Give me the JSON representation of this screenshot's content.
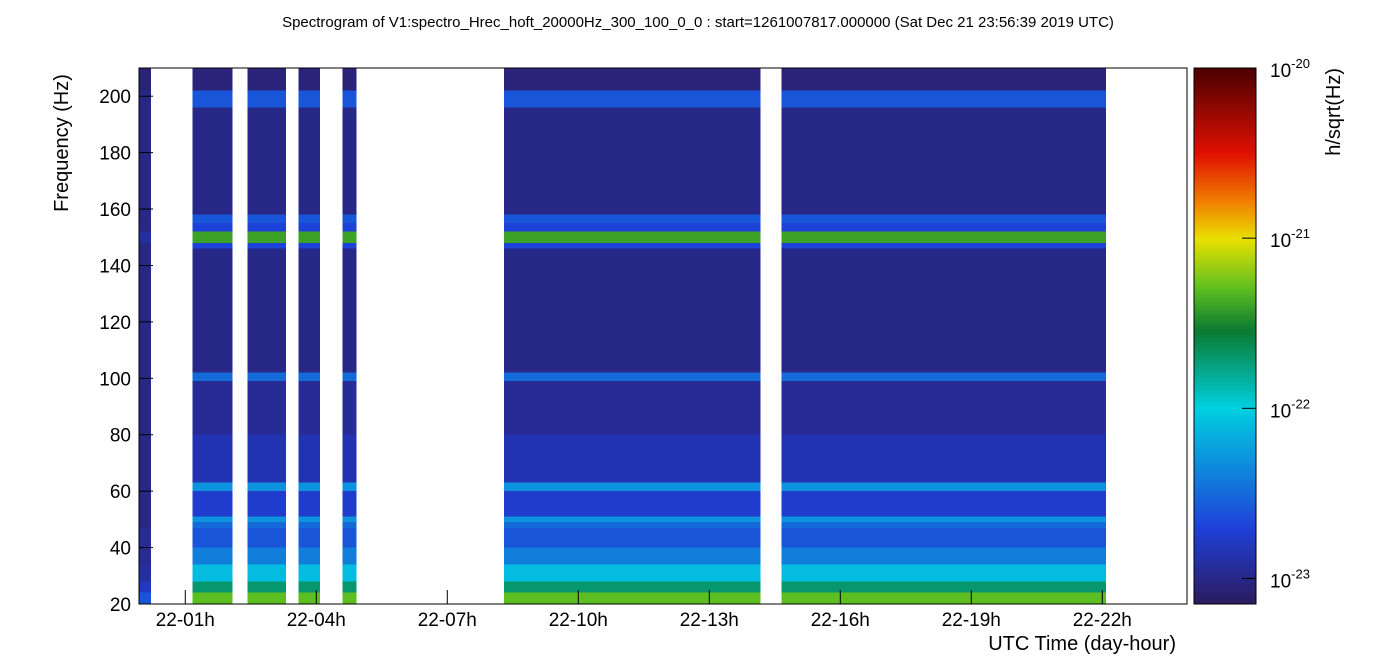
{
  "chart_data": {
    "type": "heatmap",
    "title": "Spectrogram of V1:spectro_Hrec_hoft_20000Hz_300_100_0_0 : start=1261007817.000000 (Sat Dec 21 23:56:39 2019 UTC)",
    "x_label": "UTC Time (day-hour)",
    "y_label": "Frequency (Hz)",
    "colorbar_label": "h/sqrt(Hz)",
    "xlim": [
      -0.06,
      23.94
    ],
    "xticks": [
      {
        "value": 1,
        "label": "22-01h"
      },
      {
        "value": 4,
        "label": "22-04h"
      },
      {
        "value": 7,
        "label": "22-07h"
      },
      {
        "value": 10,
        "label": "22-10h"
      },
      {
        "value": 13,
        "label": "22-13h"
      },
      {
        "value": 16,
        "label": "22-16h"
      },
      {
        "value": 19,
        "label": "22-19h"
      },
      {
        "value": 22,
        "label": "22-22h"
      }
    ],
    "ylim": [
      20,
      210
    ],
    "yticks": [
      20,
      40,
      60,
      80,
      100,
      120,
      140,
      160,
      180,
      200
    ],
    "zlim": [
      -23.15,
      -20
    ],
    "zticks": [
      {
        "value": -23,
        "label": "10",
        "exponent": "-23"
      },
      {
        "value": -22,
        "label": "10",
        "exponent": "-22"
      },
      {
        "value": -21,
        "label": "10",
        "exponent": "-21"
      },
      {
        "value": -20,
        "label": "10",
        "exponent": "-20"
      }
    ],
    "colorscale": [
      [
        0,
        "#2c1b5e"
      ],
      [
        0.14,
        "#1e3fd8"
      ],
      [
        0.365,
        "#00d0e0"
      ],
      [
        0.51,
        "#0a7a30"
      ],
      [
        0.59,
        "#60c020"
      ],
      [
        0.68,
        "#e8e000"
      ],
      [
        0.75,
        "#f08000"
      ],
      [
        0.84,
        "#e01000"
      ],
      [
        1,
        "#4a0000"
      ]
    ],
    "xbins": [
      -0.06,
      0.22,
      1.16,
      2.08,
      2.42,
      3.31,
      3.59,
      4.09,
      4.6,
      4.92,
      8.3,
      14.17,
      14.65,
      22.09
    ],
    "ybins": [
      20,
      24,
      28,
      34,
      40,
      47,
      49,
      51,
      60,
      63,
      80,
      99,
      102,
      146,
      148,
      152,
      155,
      158,
      196,
      202,
      210
    ],
    "z": [
      [
        -22.6,
        null,
        -21.3,
        null,
        -21.3,
        null,
        -21.3,
        null,
        -21.3,
        null,
        -21.3,
        null,
        -21.3
      ],
      [
        -22.8,
        null,
        -21.7,
        null,
        -21.7,
        null,
        -21.7,
        null,
        -21.7,
        null,
        -21.7,
        null,
        -21.7
      ],
      [
        -22.9,
        null,
        -22.1,
        null,
        -22.1,
        null,
        -22.1,
        null,
        -22.1,
        null,
        -22.1,
        null,
        -22.1
      ],
      [
        -22.95,
        null,
        -22.4,
        null,
        -22.4,
        null,
        -22.4,
        null,
        -22.4,
        null,
        -22.4,
        null,
        -22.4
      ],
      [
        -22.95,
        null,
        -22.6,
        null,
        -22.6,
        null,
        -22.6,
        null,
        -22.6,
        null,
        -22.6,
        null,
        -22.6
      ],
      [
        -23,
        null,
        -22.5,
        null,
        -22.5,
        null,
        -22.5,
        null,
        -22.5,
        null,
        -22.5,
        null,
        -22.5
      ],
      [
        -23,
        null,
        -22.3,
        null,
        -22.3,
        null,
        -22.3,
        null,
        -22.3,
        null,
        -22.3,
        null,
        -22.3
      ],
      [
        -23,
        null,
        -22.75,
        null,
        -22.75,
        null,
        -22.75,
        null,
        -22.75,
        null,
        -22.75,
        null,
        -22.75
      ],
      [
        -23,
        null,
        -22.3,
        null,
        -22.3,
        null,
        -22.3,
        null,
        -22.3,
        null,
        -22.3,
        null,
        -22.3
      ],
      [
        -23,
        null,
        -22.85,
        null,
        -22.85,
        null,
        -22.85,
        null,
        -22.85,
        null,
        -22.85,
        null,
        -22.85
      ],
      [
        -23,
        null,
        -22.95,
        null,
        -22.95,
        null,
        -22.95,
        null,
        -22.95,
        null,
        -22.95,
        null,
        -22.95
      ],
      [
        -23,
        null,
        -22.5,
        null,
        -22.5,
        null,
        -22.5,
        null,
        -22.5,
        null,
        -22.5,
        null,
        -22.5
      ],
      [
        -23,
        null,
        -23,
        null,
        -23,
        null,
        -23,
        null,
        -23,
        null,
        -23,
        null,
        -23
      ],
      [
        -23,
        null,
        -22.7,
        null,
        -22.7,
        null,
        -22.7,
        null,
        -22.7,
        null,
        -22.7,
        null,
        -22.7
      ],
      [
        -22.9,
        null,
        -21.4,
        null,
        -21.4,
        null,
        -21.4,
        null,
        -21.4,
        null,
        -21.4,
        null,
        -21.4
      ],
      [
        -23,
        null,
        -22.7,
        null,
        -22.7,
        null,
        -22.7,
        null,
        -22.7,
        null,
        -22.7,
        null,
        -22.7
      ],
      [
        -23,
        null,
        -22.6,
        null,
        -22.6,
        null,
        -22.6,
        null,
        -22.6,
        null,
        -22.6,
        null,
        -22.6
      ],
      [
        -23,
        null,
        -23,
        null,
        -23,
        null,
        -23,
        null,
        -23,
        null,
        -23,
        null,
        -23
      ],
      [
        -23,
        null,
        -22.6,
        null,
        -22.6,
        null,
        -22.6,
        null,
        -22.6,
        null,
        -22.6,
        null,
        -22.6
      ],
      [
        -23.05,
        null,
        -23.05,
        null,
        -23.05,
        null,
        -23.05,
        null,
        -23.05,
        null,
        -23.05,
        null,
        -23.05
      ]
    ]
  }
}
